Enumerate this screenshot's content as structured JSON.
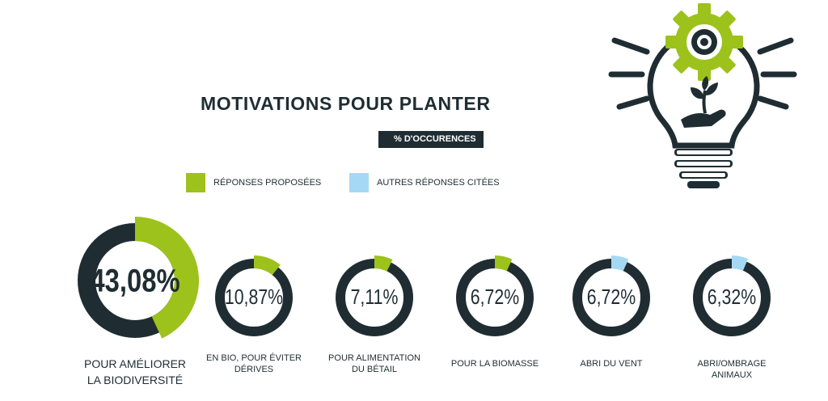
{
  "chart_data": {
    "type": "donut",
    "title": "MOTIVATIONS POUR PLANTER",
    "subtitle": "% D'OCCURENCES",
    "max": 100,
    "legend": [
      {
        "label": "RÉPONSES PROPOSÉES",
        "color": "#9dc21b"
      },
      {
        "label": "AUTRES RÉPONSES CITÉES",
        "color": "#a5d9f3"
      }
    ],
    "items": [
      {
        "value": 43.08,
        "value_label": "43,08%",
        "label": "POUR AMÉLIORER\nLA BIODIVERSITÉ",
        "group": 0
      },
      {
        "value": 10.87,
        "value_label": "10,87%",
        "label": "EN BIO, POUR ÉVITER\nDÉRIVES",
        "group": 0
      },
      {
        "value": 7.11,
        "value_label": "7,11%",
        "label": "POUR ALIMENTATION\nDU BÉTAIL",
        "group": 0
      },
      {
        "value": 6.72,
        "value_label": "6,72%",
        "label": "POUR LA BIOMASSE",
        "group": 0
      },
      {
        "value": 6.72,
        "value_label": "6,72%",
        "label": "ABRI DU VENT",
        "group": 1
      },
      {
        "value": 6.32,
        "value_label": "6,32%",
        "label": "ABRI/OMBRAGE ANIMAUX",
        "group": 1
      }
    ],
    "ring_color": "#1f2d33",
    "green": "#9dc21b",
    "blue": "#a5d9f3"
  },
  "colors": {
    "dark": "#1f2d33",
    "green": "#9dc21b",
    "blue": "#a5d9f3"
  },
  "illustration": {
    "name": "lightbulb-gear-plant-icon"
  }
}
